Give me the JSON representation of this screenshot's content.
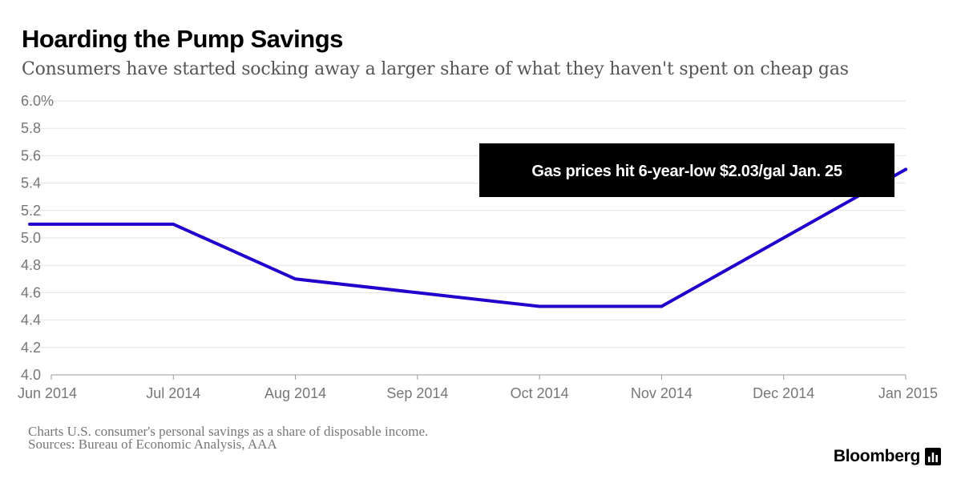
{
  "title": "Hoarding the Pump Savings",
  "subtitle": "Consumers have started socking away a larger share of what they haven't spent on cheap gas",
  "footnote": "Charts U.S. consumer's personal savings as a share of disposable income.",
  "sources": "Sources: Bureau of Economic Analysis, AAA",
  "brand": "Bloomberg",
  "brand_icon": "bloomberg-chart-icon",
  "colors": {
    "line": "#2200cc",
    "annotation_bg": "#000000",
    "annotation_text": "#ffffff",
    "grid": "#e3e3e3",
    "axis_text": "#777777"
  },
  "chart_data": {
    "type": "line",
    "x": [
      "Jun 2014",
      "Jul 2014",
      "Aug 2014",
      "Sep 2014",
      "Oct 2014",
      "Nov 2014",
      "Dec 2014",
      "Jan 2015"
    ],
    "series": [
      {
        "values": [
          5.1,
          5.1,
          4.7,
          4.6,
          4.5,
          4.5,
          5.0,
          5.5
        ]
      }
    ],
    "y_ticks": [
      "6.0%",
      "5.8",
      "5.6",
      "5.4",
      "5.2",
      "5.0",
      "4.8",
      "4.6",
      "4.4",
      "4.2",
      "4.0"
    ],
    "ylim": [
      4.0,
      6.0
    ],
    "grid": true,
    "annotation": {
      "text": "Gas prices hit 6-year-low $2.03/gal Jan. 25",
      "x": "Jan 2015",
      "y": 5.5
    }
  }
}
